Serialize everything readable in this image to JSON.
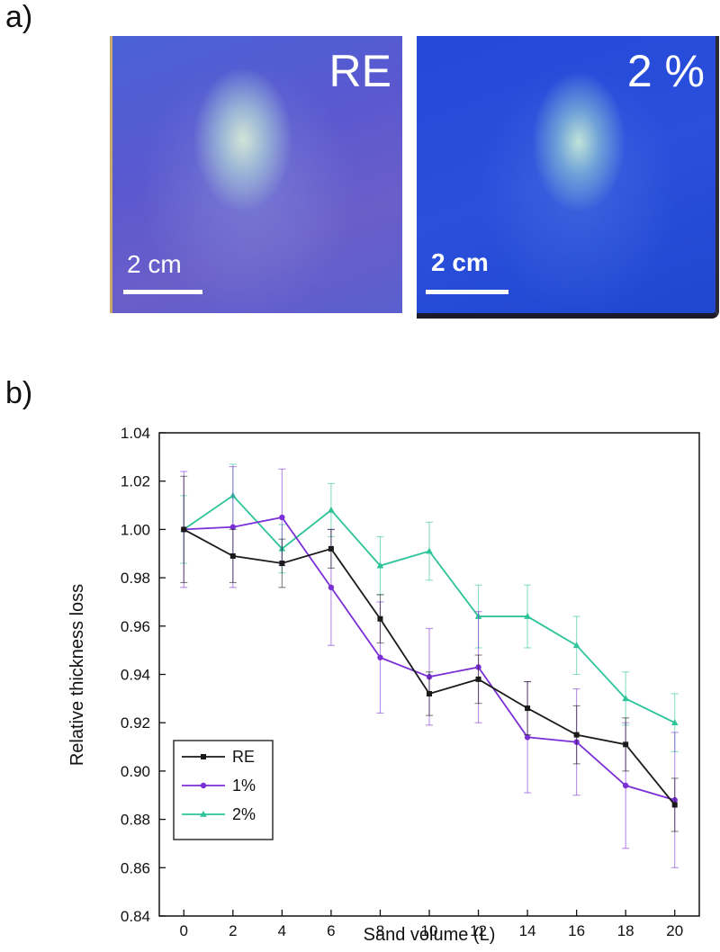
{
  "panels": {
    "a": "a)",
    "b": "b)"
  },
  "photos": {
    "re": {
      "tag": "RE",
      "scale": "2 cm"
    },
    "two": {
      "tag": "2 %",
      "scale": "2 cm"
    }
  },
  "chart_data": {
    "type": "line",
    "title": "",
    "xlabel": "Sand volume (L)",
    "ylabel": "Relative thickness loss",
    "xlim": [
      -1,
      21
    ],
    "ylim": [
      0.84,
      1.04
    ],
    "x": [
      0,
      2,
      4,
      6,
      8,
      10,
      12,
      14,
      16,
      18,
      20
    ],
    "xticks": [
      0,
      2,
      4,
      6,
      8,
      10,
      12,
      14,
      16,
      18,
      20
    ],
    "yticks": [
      0.84,
      0.86,
      0.88,
      0.9,
      0.92,
      0.94,
      0.96,
      0.98,
      1.0,
      1.02,
      1.04
    ],
    "legend_position": "bottom-left",
    "series": [
      {
        "name": "RE",
        "color": "#1a1a1a",
        "marker": "square",
        "values": [
          1.0,
          0.989,
          0.986,
          0.992,
          0.963,
          0.932,
          0.938,
          0.926,
          0.915,
          0.911,
          0.886
        ],
        "errors": [
          0.022,
          0.011,
          0.01,
          0.008,
          0.01,
          0.009,
          0.01,
          0.011,
          0.012,
          0.011,
          0.011
        ]
      },
      {
        "name": "1%",
        "color": "#7b2fd6",
        "marker": "circle",
        "values": [
          1.0,
          1.001,
          1.005,
          0.976,
          0.947,
          0.939,
          0.943,
          0.914,
          0.912,
          0.894,
          0.888
        ],
        "errors": [
          0.024,
          0.025,
          0.02,
          0.024,
          0.023,
          0.02,
          0.023,
          0.023,
          0.022,
          0.026,
          0.028
        ]
      },
      {
        "name": "2%",
        "color": "#2ec499",
        "marker": "triangle",
        "values": [
          1.0,
          1.014,
          0.992,
          1.008,
          0.985,
          0.991,
          0.964,
          0.964,
          0.952,
          0.93,
          0.92
        ],
        "errors": [
          0.014,
          0.013,
          0.01,
          0.011,
          0.012,
          0.012,
          0.013,
          0.013,
          0.012,
          0.011,
          0.012
        ]
      }
    ]
  }
}
